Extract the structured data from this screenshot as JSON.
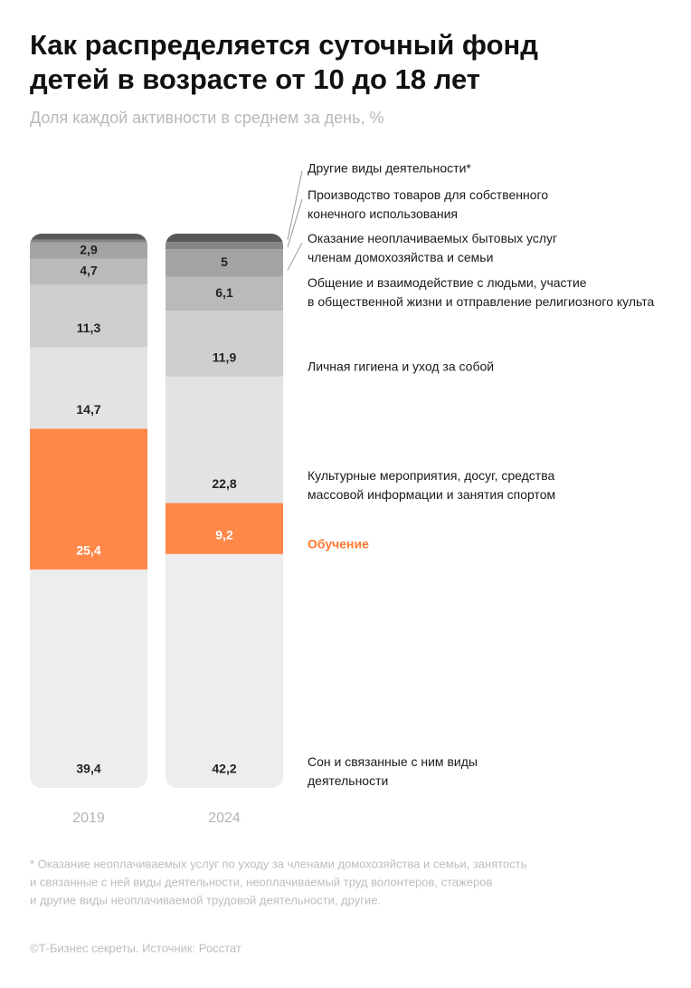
{
  "chart_data": {
    "type": "stacked-bar",
    "title": [
      "Как распределяется суточный фонд",
      "детей в возрасте от 10 до 18 лет"
    ],
    "subtitle": "Доля каждой активности в среднем за день, %",
    "categories": [
      "2019",
      "2024"
    ],
    "series": [
      {
        "name": "Сон и связанные с ним виды\nдеятельности",
        "color": "#ededed",
        "values": [
          39.4,
          42.2
        ],
        "value_labels": [
          "39,4",
          "42,2"
        ]
      },
      {
        "name": "Обучение",
        "color": "#ff8748",
        "values": [
          25.4,
          9.2
        ],
        "value_labels": [
          "25,4",
          "9,2"
        ]
      },
      {
        "name": "Культурные мероприятия, досуг, средства\nмассовой информации и занятия спортом",
        "color": "#e3e3e3",
        "values": [
          14.7,
          22.8
        ],
        "value_labels": [
          "14,7",
          "22,8"
        ]
      },
      {
        "name": "Личная гигиена и уход за собой",
        "color": "#cfcfcf",
        "values": [
          11.3,
          11.9
        ],
        "value_labels": [
          "11,3",
          "11,9"
        ]
      },
      {
        "name": "Общение и взаимодействие с людьми, участие\nв общественной жизни и отправление религиозного культа",
        "color": "#bababa",
        "values": [
          4.7,
          6.1
        ],
        "value_labels": [
          "4,7",
          "6,1"
        ]
      },
      {
        "name": "Оказание неоплачиваемых бытовых услуг\nчленам домохозяйства и семьи",
        "color": "#a4a4a4",
        "values": [
          2.9,
          5
        ],
        "value_labels": [
          "2,9",
          "5"
        ]
      },
      {
        "name": "Производство товаров для собственного\nконечного использования",
        "color": "#858585",
        "values": [
          0.5,
          1.3
        ],
        "value_labels": [
          null,
          null
        ]
      },
      {
        "name": "Другие виды деятельности*",
        "color": "#585858",
        "values": [
          1.1,
          1.5
        ],
        "value_labels": [
          null,
          null
        ]
      }
    ],
    "ylim": [
      0,
      100
    ],
    "footnote": [
      "* Оказание неоплачиваемых услуг по уходу за членами домохозяйства и семьи, занятость",
      "и связанные с ней виды деятельности, неоплачиваемый труд волонтеров, стажеров",
      "и другие виды неоплачиваемой трудовой деятельности, другие."
    ],
    "source": "©Т-Бизнес секреты. Источник: Росстат"
  }
}
